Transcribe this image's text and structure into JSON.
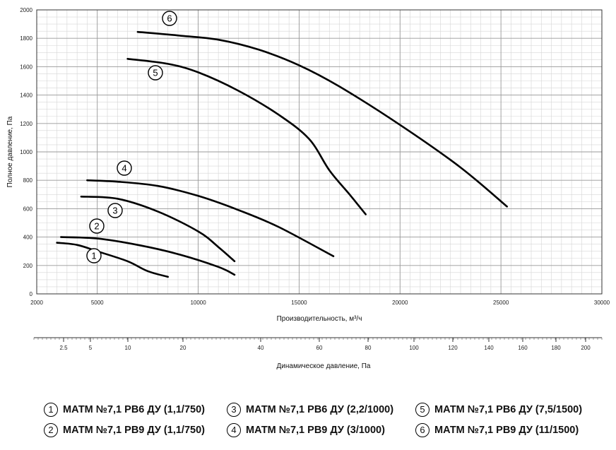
{
  "chart_data": {
    "type": "line",
    "ylabel": "Полное давление, Па",
    "xlabel": "Производительность, м³/ч",
    "xlim": [
      2000,
      30000
    ],
    "ylim": [
      0,
      2000
    ],
    "x_ticks": [
      2000,
      5000,
      10000,
      15000,
      20000,
      25000,
      30000
    ],
    "y_ticks": [
      0,
      200,
      400,
      600,
      800,
      1000,
      1200,
      1400,
      1600,
      1800,
      2000
    ],
    "grid": true,
    "series": [
      {
        "name": "1",
        "points": [
          [
            3000,
            360
          ],
          [
            4000,
            345
          ],
          [
            5000,
            300
          ],
          [
            6500,
            230
          ],
          [
            7500,
            160
          ],
          [
            8500,
            120
          ]
        ]
      },
      {
        "name": "2",
        "points": [
          [
            3200,
            400
          ],
          [
            5000,
            390
          ],
          [
            7000,
            345
          ],
          [
            9000,
            280
          ],
          [
            11000,
            190
          ],
          [
            11800,
            135
          ]
        ]
      },
      {
        "name": "3",
        "points": [
          [
            4200,
            685
          ],
          [
            6000,
            670
          ],
          [
            8000,
            580
          ],
          [
            10000,
            440
          ],
          [
            11000,
            330
          ],
          [
            11800,
            230
          ]
        ]
      },
      {
        "name": "4",
        "points": [
          [
            4500,
            800
          ],
          [
            6000,
            790
          ],
          [
            8000,
            760
          ],
          [
            10000,
            690
          ],
          [
            12000,
            590
          ],
          [
            14000,
            470
          ],
          [
            16700,
            265
          ]
        ]
      },
      {
        "name": "5",
        "points": [
          [
            6500,
            1655
          ],
          [
            8500,
            1620
          ],
          [
            10000,
            1560
          ],
          [
            12000,
            1430
          ],
          [
            14000,
            1260
          ],
          [
            15500,
            1090
          ],
          [
            16500,
            870
          ],
          [
            17500,
            700
          ],
          [
            18300,
            560
          ]
        ]
      },
      {
        "name": "6",
        "points": [
          [
            7000,
            1845
          ],
          [
            9000,
            1820
          ],
          [
            11000,
            1790
          ],
          [
            13000,
            1720
          ],
          [
            15000,
            1610
          ],
          [
            17000,
            1460
          ],
          [
            20000,
            1190
          ],
          [
            23000,
            890
          ],
          [
            25300,
            615
          ]
        ]
      }
    ],
    "markers": [
      {
        "label": "1",
        "x": 5000,
        "y": 275
      },
      {
        "label": "2",
        "x": 5000,
        "y": 480
      },
      {
        "label": "3",
        "x": 5000,
        "y": 585
      },
      {
        "label": "4",
        "x": 5000,
        "y": 890
      },
      {
        "label": "5",
        "x": 5000,
        "y": 1565
      },
      {
        "label": "6",
        "x": 5000,
        "y": 1950
      }
    ],
    "secondary_axis": {
      "label": "Динамическое давление, Па",
      "ticks": [
        "2.5",
        "5",
        "10",
        "20",
        "40",
        "60",
        "80",
        "100",
        "120",
        "140",
        "160",
        "180",
        "200"
      ]
    }
  },
  "legend": [
    {
      "num": "1",
      "text": "МАТМ №7,1 РВ6 ДУ (1,1/750)"
    },
    {
      "num": "3",
      "text": "МАТМ №7,1 РВ6 ДУ (2,2/1000)"
    },
    {
      "num": "5",
      "text": "МАТМ №7,1 РВ6 ДУ (7,5/1500)"
    },
    {
      "num": "2",
      "text": "МАТМ №7,1 РВ9 ДУ (1,1/750)"
    },
    {
      "num": "4",
      "text": "МАТМ №7,1 РВ9 ДУ (3/1000)"
    },
    {
      "num": "6",
      "text": "МАТМ №7,1 РВ9 ДУ (11/1500)"
    }
  ]
}
